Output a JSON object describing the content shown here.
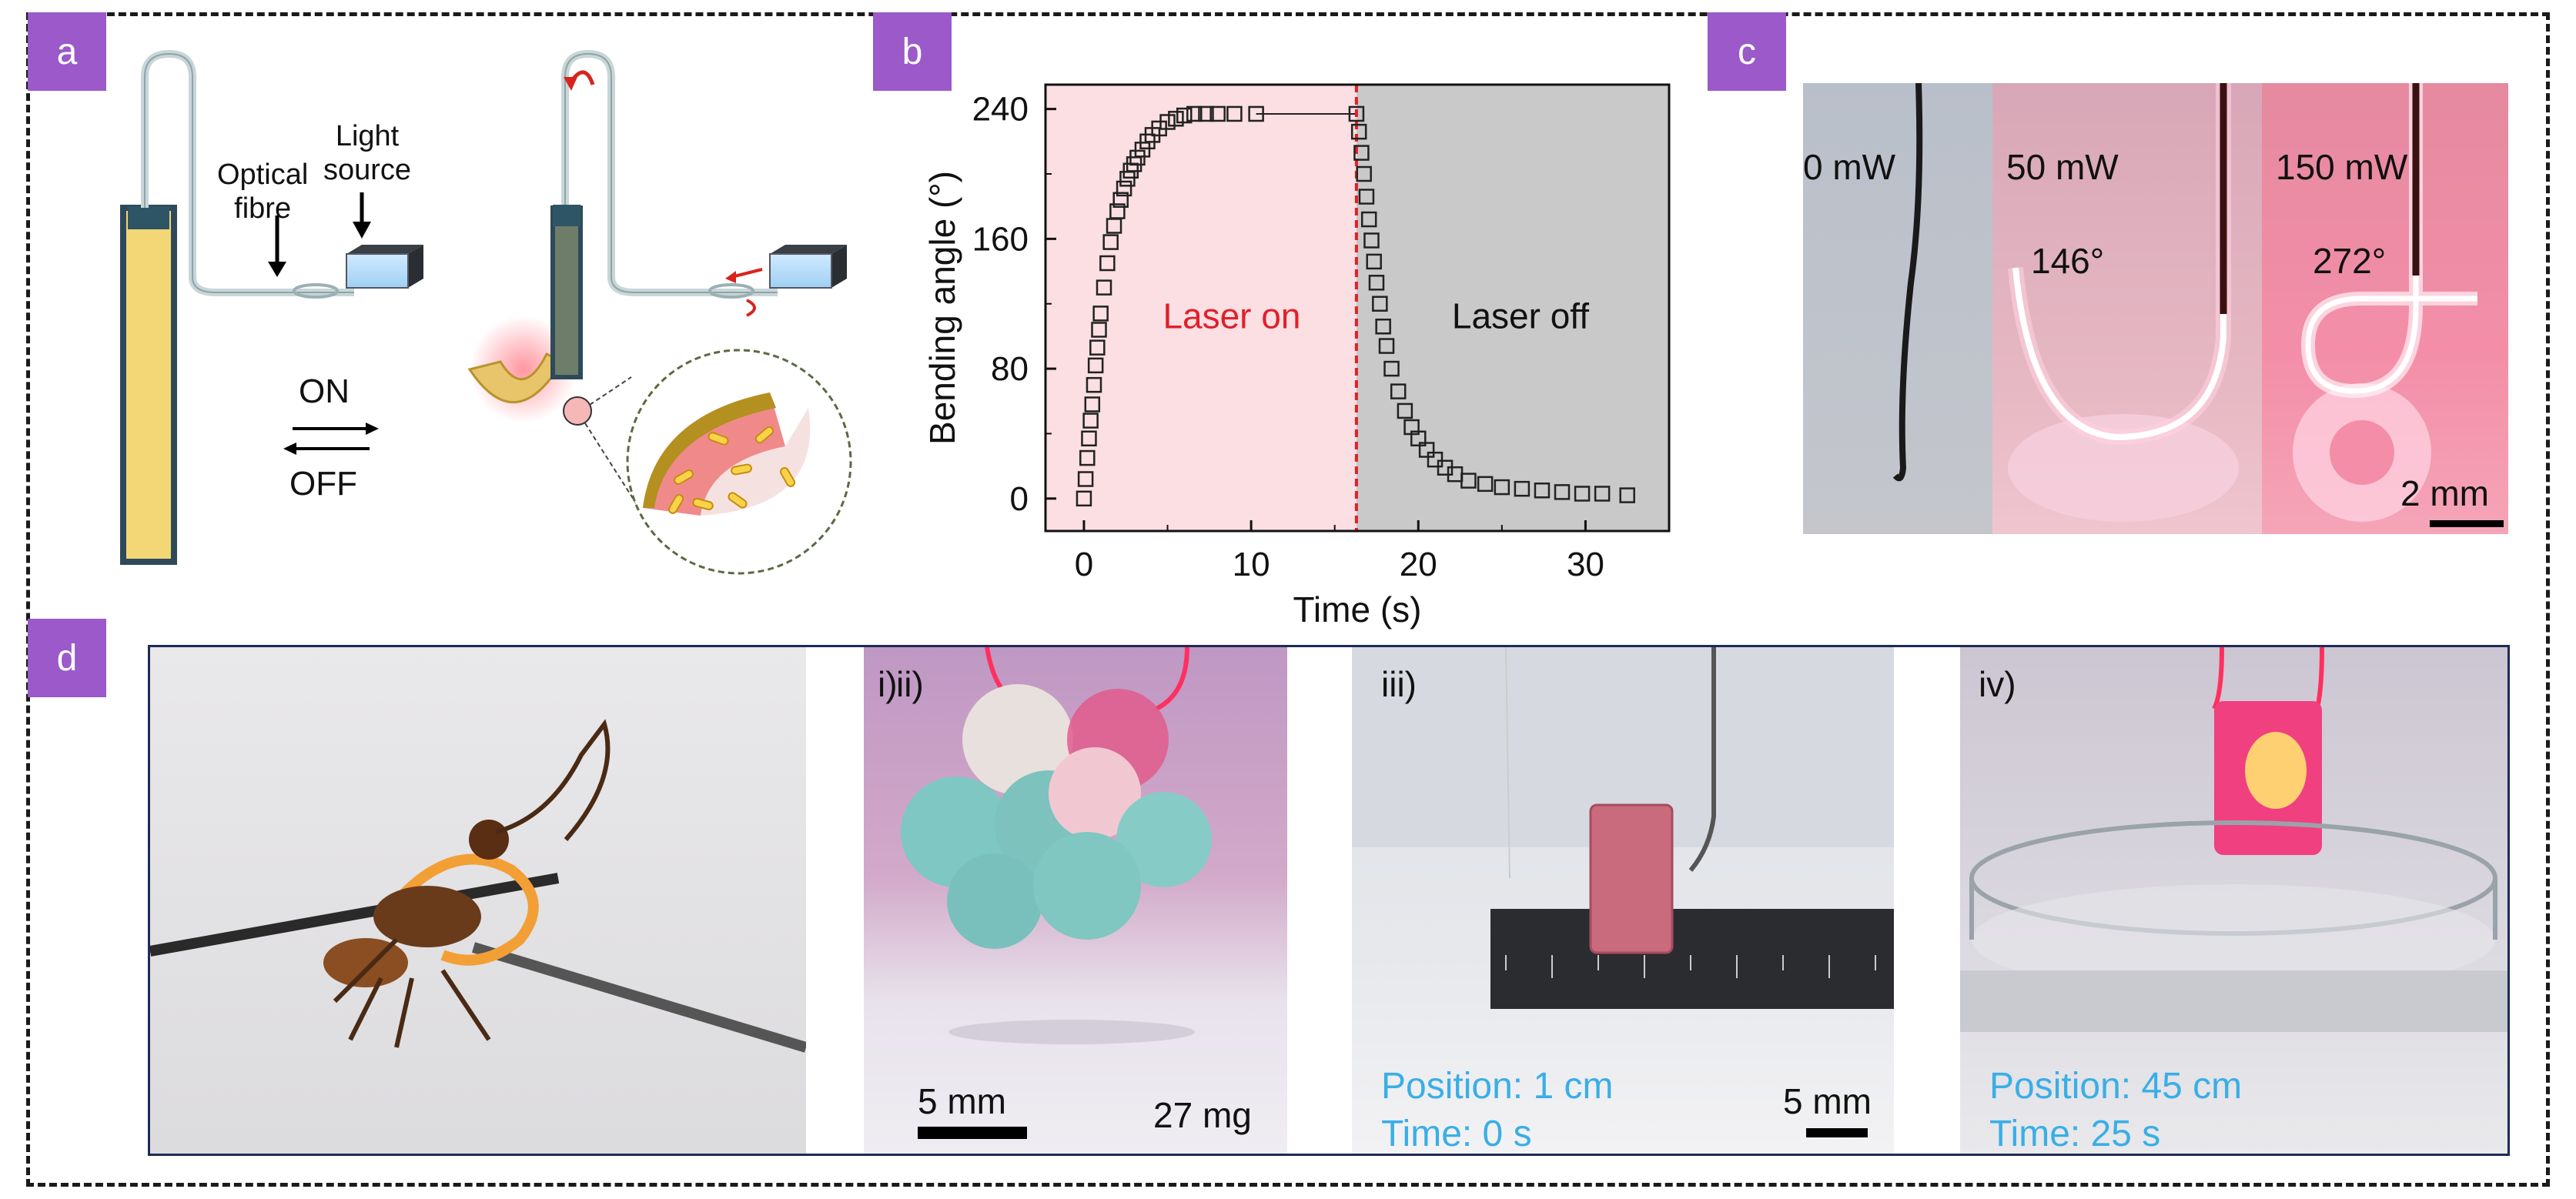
{
  "panels": {
    "a": {
      "tag": "a",
      "optical_fibre": "Optical\nfibre",
      "light_source": "Light\nsource",
      "on": "ON",
      "off": "OFF"
    },
    "b": {
      "tag": "b"
    },
    "c": {
      "tag": "c",
      "power_labels": [
        "0 mW",
        "50 mW",
        "150 mW"
      ],
      "angle_labels": [
        "146°",
        "272°"
      ],
      "scale_label": "2 mm"
    },
    "d": {
      "tag": "d",
      "sub_labels": [
        "i)",
        "ii)",
        "iii)",
        "iv)"
      ],
      "ii_scale": "5 mm",
      "ii_mass": "27 mg",
      "iii_position": "Position: 1 cm",
      "iii_time": "Time: 0 s",
      "iii_scale": "5 mm",
      "iv_position": "Position: 45 cm",
      "iv_time": "Time: 25 s"
    }
  },
  "colors": {
    "tag_purple": "#9b59c9",
    "laser_on_bg": "#fbdfe2",
    "laser_off_bg": "#c9c9c9",
    "laser_red": "#e0202a",
    "caption_cyan": "#3aaee6"
  },
  "chart_data": {
    "type": "scatter",
    "xlabel": "Time (s)",
    "ylabel": "Bending angle (°)",
    "xlim": [
      -2.3,
      35
    ],
    "ylim": [
      -20,
      255
    ],
    "xticks": [
      0,
      10,
      20,
      30
    ],
    "yticks": [
      0,
      80,
      160,
      240
    ],
    "laser_switch_time": 16.3,
    "annotations": {
      "laser_on": "Laser on",
      "laser_off": "Laser off"
    },
    "series": [
      {
        "marker": "open-square",
        "x": [
          0,
          0.1,
          0.2,
          0.3,
          0.4,
          0.5,
          0.6,
          0.7,
          0.8,
          0.9,
          1.0,
          1.2,
          1.4,
          1.6,
          1.8,
          2.0,
          2.2,
          2.4,
          2.6,
          2.8,
          3.0,
          3.2,
          3.5,
          3.8,
          4.1,
          4.5,
          5.0,
          5.5,
          6.0,
          6.6,
          7.3,
          8.0,
          9.0,
          10.3,
          16.3,
          16.45,
          16.6,
          16.75,
          16.9,
          17.05,
          17.2,
          17.35,
          17.5,
          17.7,
          17.9,
          18.1,
          18.4,
          18.8,
          19.2,
          19.6,
          20.0,
          20.5,
          21.0,
          21.6,
          22.2,
          23.0,
          24.0,
          25.0,
          26.2,
          27.4,
          28.6,
          29.8,
          31.0,
          32.5
        ],
        "y": [
          0,
          12,
          25,
          37,
          48,
          58,
          70,
          82,
          93,
          104,
          114,
          130,
          145,
          158,
          168,
          177,
          184,
          191,
          197,
          202,
          206,
          210,
          215,
          220,
          224,
          228,
          232,
          234,
          236,
          237,
          237,
          237,
          237,
          237,
          237,
          226,
          213,
          200,
          186,
          172,
          159,
          146,
          133,
          120,
          106,
          94,
          80,
          66,
          54,
          44,
          37,
          30,
          24,
          19,
          15,
          11,
          9,
          7,
          6,
          5,
          4,
          3,
          3,
          2
        ]
      }
    ]
  }
}
